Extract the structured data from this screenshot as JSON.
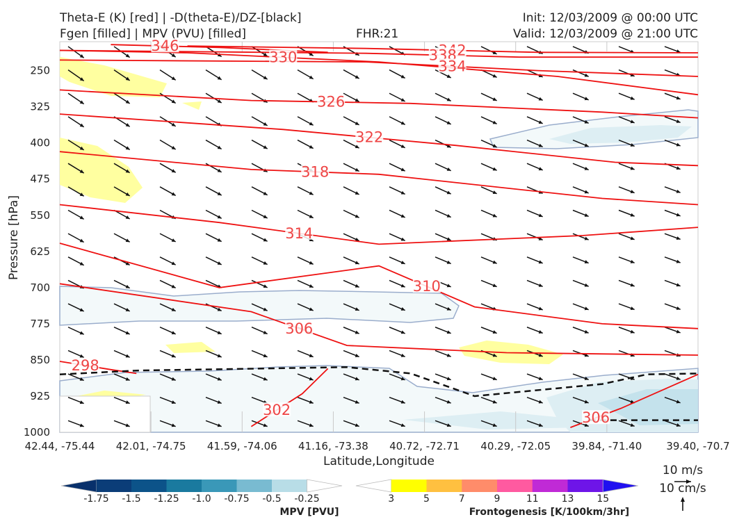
{
  "header": {
    "title_line1": "Theta-E (K) [red] | -D(theta-E)/DZ-[black]",
    "title_line2": "Fgen [filled] | MPV (PVU) [filled]",
    "fhr": "FHR:21",
    "init": "Init: 12/03/2009 @ 00:00 UTC",
    "valid": "Valid: 12/03/2009 @ 21:00 UTC"
  },
  "chart_data": {
    "type": "cross-section",
    "ylabel": "Pressure [hPa]",
    "xlabel": "Latitude,Longitude",
    "y_ticks": [
      "250",
      "325",
      "400",
      "475",
      "550",
      "625",
      "700",
      "775",
      "850",
      "925",
      "1000"
    ],
    "y_values": [
      250,
      325,
      400,
      475,
      550,
      625,
      700,
      775,
      850,
      925,
      1000
    ],
    "ylim": [
      1000,
      190
    ],
    "x_ticks": [
      "42.44, -75.44",
      "42.01, -74.75",
      "41.59, -74.06",
      "41.16, -73.38",
      "40.72, -72.71",
      "40.29, -72.05",
      "39.84, -71.40",
      "39.40, -70.7"
    ],
    "theta_e_contours": [
      {
        "label": "330",
        "p": [
          208,
          213,
          232,
          262,
          300
        ],
        "x": [
          0,
          0.2,
          0.5,
          0.78,
          1.0
        ]
      },
      {
        "label": "346",
        "p": [
          196,
          202,
          212
        ],
        "x": [
          0.08,
          0.25,
          0.42
        ]
      },
      {
        "label": "342",
        "p": [
          199,
          204,
          212,
          213
        ],
        "x": [
          0.2,
          0.48,
          0.75,
          1.0
        ]
      },
      {
        "label": "338",
        "p": [
          208,
          214,
          222,
          222
        ],
        "x": [
          0,
          0.48,
          0.72,
          1.0
        ]
      },
      {
        "label": "334",
        "p": [
          228,
          232,
          250,
          262
        ],
        "x": [
          0,
          0.48,
          0.75,
          1.0
        ]
      },
      {
        "label": "326",
        "p": [
          290,
          312,
          318,
          336,
          348
        ],
        "x": [
          0,
          0.3,
          0.55,
          0.85,
          1.0
        ]
      },
      {
        "label": "322",
        "p": [
          340,
          372,
          405,
          440,
          447
        ],
        "x": [
          0,
          0.35,
          0.62,
          0.87,
          1.0
        ]
      },
      {
        "label": "318",
        "p": [
          418,
          455,
          465,
          515,
          528
        ],
        "x": [
          0,
          0.3,
          0.5,
          0.85,
          1.0
        ]
      },
      {
        "label": "314",
        "p": [
          528,
          565,
          610,
          592,
          575
        ],
        "x": [
          0,
          0.25,
          0.5,
          0.82,
          1.0
        ]
      },
      {
        "label": "310",
        "p": [
          608,
          700,
          655,
          740,
          775,
          785
        ],
        "x": [
          0,
          0.25,
          0.5,
          0.65,
          0.85,
          1.0
        ]
      },
      {
        "label": "306",
        "p": [
          692,
          750,
          820,
          835,
          840
        ],
        "x": [
          0,
          0.3,
          0.45,
          0.7,
          1.0
        ]
      },
      {
        "label": "298",
        "p": [
          853,
          870,
          878
        ],
        "x": [
          0,
          0.08,
          0.12
        ]
      },
      {
        "label": "302",
        "p": [
          988,
          920,
          868
        ],
        "x": [
          0.3,
          0.38,
          0.42
        ]
      },
      {
        "label": "306",
        "p": [
          990,
          950,
          880
        ],
        "x": [
          0.8,
          0.88,
          1.0
        ]
      }
    ],
    "dthetae_dz_zero_line": {
      "p": [
        880,
        872,
        865,
        878,
        925,
        900,
        880,
        878
      ],
      "x": [
        0,
        0.12,
        0.45,
        0.55,
        0.65,
        0.85,
        0.92,
        1.0
      ]
    },
    "mpv_colorbar": {
      "label": "MPV [PVU]",
      "ticks": [
        "-1.75",
        "-1.5",
        "-1.25",
        "-1.0",
        "-0.75",
        "-0.5",
        "-0.25"
      ],
      "colors": [
        "#08306b",
        "#0b3d78",
        "#0c5389",
        "#1a7a9f",
        "#3a98b8",
        "#79bbd1",
        "#b8dde7",
        "#ffffff"
      ]
    },
    "fgen_colorbar": {
      "label": "Frontogenesis [K/100km/3hr]",
      "ticks": [
        "3",
        "5",
        "7",
        "9",
        "11",
        "13",
        "15"
      ],
      "colors": [
        "#ffffff",
        "#ffff00",
        "#ffc040",
        "#ff8c6a",
        "#ff5aa0",
        "#c02ad6",
        "#6e15e8",
        "#2010f0"
      ]
    },
    "wind_key": {
      "horizontal": "10 m/s",
      "vertical": "10 cm/s"
    },
    "wind_u": 1.0,
    "wind_v": -0.35
  }
}
